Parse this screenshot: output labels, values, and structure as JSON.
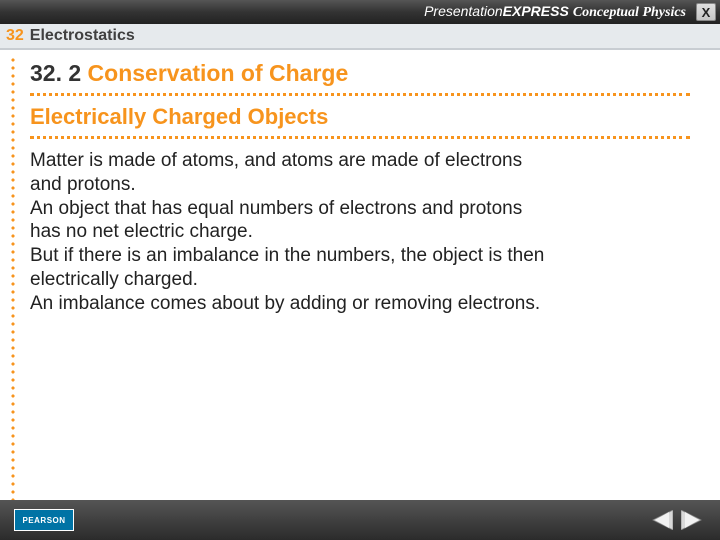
{
  "topbar": {
    "brand_presentation": "Presentation",
    "brand_express": "EXPRESS",
    "brand_book": "Conceptual",
    "brand_book2": "Physics",
    "close_label": "X"
  },
  "chapter": {
    "number": "32",
    "title": "Electrostatics"
  },
  "section": {
    "number": "32. 2",
    "name": "Conservation of Charge"
  },
  "subtitle": "Electrically Charged Objects",
  "body": "Matter is made of atoms, and atoms are made of electrons and protons.\nAn object that has equal numbers of electrons and protons has no net electric charge.\nBut if there is an imbalance in the numbers, the object is then electrically charged.\nAn imbalance comes about by adding or removing electrons.",
  "footer": {
    "logo_text": "PEARSON"
  },
  "colors": {
    "accent": "#f7941d",
    "text": "#222222",
    "chapter_bg": "#e6eaed"
  }
}
